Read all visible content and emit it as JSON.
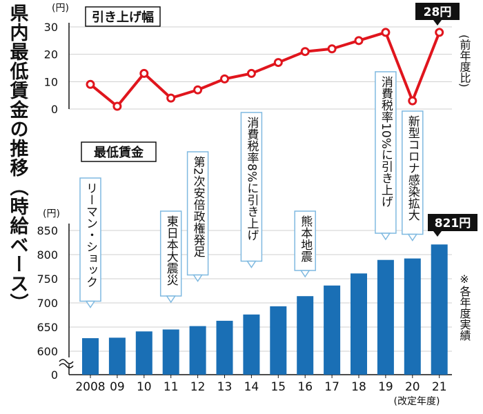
{
  "page_title": "県内最低賃金の推移（時給ベース）",
  "top_chart_title": "引き上げ幅",
  "bottom_chart_title": "最低賃金",
  "top_unit": "(円)",
  "bottom_unit": "(円)",
  "top_side_note": "(前年度比)",
  "bottom_side_note": "※各年度実績",
  "x_note": "(改定年度)",
  "top_callout": "28円",
  "bottom_callout": "821円",
  "colors": {
    "line": "#e0151d",
    "bar": "#1a6fb5",
    "callout_bg": "#111111",
    "annotation_border": "#7fb9e0"
  },
  "chart_data": [
    {
      "type": "line",
      "title": "引き上げ幅",
      "ylabel": "(円)",
      "x": [
        "2008",
        "09",
        "10",
        "11",
        "12",
        "13",
        "14",
        "15",
        "16",
        "17",
        "18",
        "19",
        "20",
        "21"
      ],
      "values": [
        9,
        1,
        13,
        4,
        7,
        11,
        13,
        17,
        21,
        22,
        25,
        28,
        3,
        28
      ],
      "ylim": [
        0,
        30
      ],
      "yticks": [
        0,
        10,
        20,
        30
      ],
      "grid": true
    },
    {
      "type": "bar",
      "title": "最低賃金",
      "ylabel": "(円)",
      "categories": [
        "2008",
        "09",
        "10",
        "11",
        "12",
        "13",
        "14",
        "15",
        "16",
        "17",
        "18",
        "19",
        "20",
        "21"
      ],
      "values": [
        627,
        628,
        641,
        645,
        652,
        663,
        676,
        693,
        714,
        736,
        761,
        789,
        792,
        821
      ],
      "ylim": [
        600,
        850
      ],
      "yticks": [
        0,
        600,
        650,
        700,
        750,
        800,
        850
      ],
      "axis_break": true,
      "grid": true,
      "annotations": [
        {
          "category": "2008",
          "text": "リーマン・ショック"
        },
        {
          "category": "11",
          "text": "東日本大震災"
        },
        {
          "category": "12",
          "text": "第2次安倍政権発足"
        },
        {
          "category": "14",
          "text": "消費税率8%に引き上げ"
        },
        {
          "category": "16",
          "text": "熊本地震"
        },
        {
          "category": "19",
          "text": "消費税率10%に引き上げ"
        },
        {
          "category": "20",
          "text": "新型コロナ感染拡大"
        }
      ]
    }
  ]
}
